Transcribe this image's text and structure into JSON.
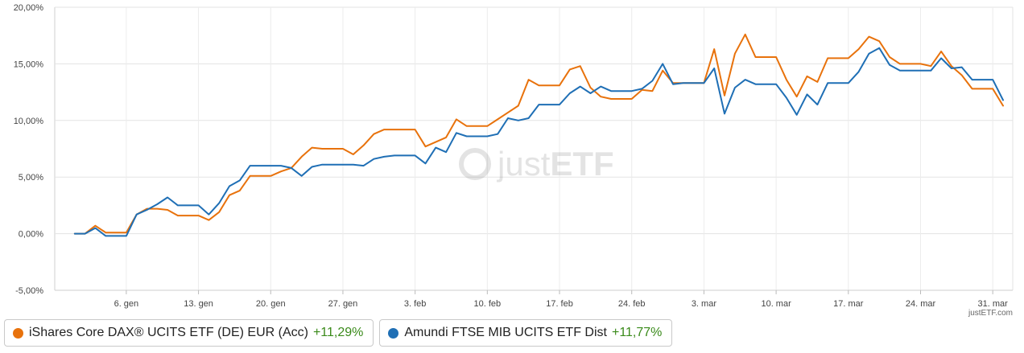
{
  "chart_data": {
    "type": "line",
    "y_tick_labels": [
      "20,00%",
      "15,00%",
      "10,00%",
      "5,00%",
      "0,00%",
      "-5,00%"
    ],
    "y_ticks": [
      20,
      15,
      10,
      5,
      0,
      -5
    ],
    "ylim": [
      -5,
      20
    ],
    "x_tick_labels": [
      "6. gen",
      "13. gen",
      "20. gen",
      "27. gen",
      "3. feb",
      "10. feb",
      "17. feb",
      "24. feb",
      "3. mar",
      "10. mar",
      "17. mar",
      "24. mar",
      "31. mar"
    ],
    "x_tick_index": [
      6,
      13,
      20,
      27,
      34,
      41,
      48,
      55,
      62,
      69,
      76,
      83,
      90
    ],
    "x_range": [
      0,
      91
    ],
    "grid": true,
    "series": [
      {
        "name": "iShares Core DAX® UCITS ETF (DE) EUR (Acc)",
        "color": "#e8720c",
        "performance": "+11,29%",
        "values": [
          [
            1,
            0
          ],
          [
            2,
            0
          ],
          [
            3,
            0.7
          ],
          [
            4,
            0.1
          ],
          [
            5,
            0.1
          ],
          [
            6,
            0.1
          ],
          [
            7,
            1.7
          ],
          [
            8,
            2.2
          ],
          [
            9,
            2.2
          ],
          [
            10,
            2.1
          ],
          [
            11,
            1.6
          ],
          [
            12,
            1.6
          ],
          [
            13,
            1.6
          ],
          [
            14,
            1.2
          ],
          [
            15,
            1.9
          ],
          [
            16,
            3.4
          ],
          [
            17,
            3.8
          ],
          [
            18,
            5.1
          ],
          [
            19,
            5.1
          ],
          [
            20,
            5.1
          ],
          [
            21,
            5.5
          ],
          [
            22,
            5.8
          ],
          [
            23,
            6.8
          ],
          [
            24,
            7.6
          ],
          [
            25,
            7.5
          ],
          [
            26,
            7.5
          ],
          [
            27,
            7.5
          ],
          [
            28,
            7.0
          ],
          [
            29,
            7.8
          ],
          [
            30,
            8.8
          ],
          [
            31,
            9.2
          ],
          [
            32,
            9.2
          ],
          [
            33,
            9.2
          ],
          [
            34,
            9.2
          ],
          [
            35,
            7.7
          ],
          [
            36,
            8.1
          ],
          [
            37,
            8.5
          ],
          [
            38,
            10.1
          ],
          [
            39,
            9.5
          ],
          [
            40,
            9.5
          ],
          [
            41,
            9.5
          ],
          [
            42,
            10.1
          ],
          [
            43,
            10.7
          ],
          [
            44,
            11.3
          ],
          [
            45,
            13.6
          ],
          [
            46,
            13.1
          ],
          [
            47,
            13.1
          ],
          [
            48,
            13.1
          ],
          [
            49,
            14.5
          ],
          [
            50,
            14.8
          ],
          [
            51,
            12.9
          ],
          [
            52,
            12.1
          ],
          [
            53,
            11.9
          ],
          [
            54,
            11.9
          ],
          [
            55,
            11.9
          ],
          [
            56,
            12.7
          ],
          [
            57,
            12.6
          ],
          [
            58,
            14.4
          ],
          [
            59,
            13.3
          ],
          [
            60,
            13.3
          ],
          [
            61,
            13.3
          ],
          [
            62,
            13.3
          ],
          [
            63,
            16.3
          ],
          [
            64,
            12.2
          ],
          [
            65,
            15.9
          ],
          [
            66,
            17.6
          ],
          [
            67,
            15.6
          ],
          [
            68,
            15.6
          ],
          [
            69,
            15.6
          ],
          [
            70,
            13.6
          ],
          [
            71,
            12.1
          ],
          [
            72,
            13.9
          ],
          [
            73,
            13.4
          ],
          [
            74,
            15.5
          ],
          [
            75,
            15.5
          ],
          [
            76,
            15.5
          ],
          [
            77,
            16.3
          ],
          [
            78,
            17.4
          ],
          [
            79,
            17.0
          ],
          [
            80,
            15.6
          ],
          [
            81,
            15.0
          ],
          [
            82,
            15.0
          ],
          [
            83,
            15.0
          ],
          [
            84,
            14.8
          ],
          [
            85,
            16.1
          ],
          [
            86,
            14.8
          ],
          [
            87,
            14.0
          ],
          [
            88,
            12.8
          ],
          [
            89,
            12.8
          ],
          [
            90,
            12.8
          ],
          [
            91,
            11.3
          ]
        ]
      },
      {
        "name": "Amundi FTSE MIB UCITS ETF Dist",
        "color": "#1f6fb5",
        "performance": "+11,77%",
        "values": [
          [
            1,
            0
          ],
          [
            2,
            0
          ],
          [
            3,
            0.5
          ],
          [
            4,
            -0.2
          ],
          [
            5,
            -0.2
          ],
          [
            6,
            -0.2
          ],
          [
            7,
            1.7
          ],
          [
            8,
            2.1
          ],
          [
            9,
            2.6
          ],
          [
            10,
            3.2
          ],
          [
            11,
            2.5
          ],
          [
            12,
            2.5
          ],
          [
            13,
            2.5
          ],
          [
            14,
            1.7
          ],
          [
            15,
            2.7
          ],
          [
            16,
            4.2
          ],
          [
            17,
            4.7
          ],
          [
            18,
            6.0
          ],
          [
            19,
            6.0
          ],
          [
            20,
            6.0
          ],
          [
            21,
            6.0
          ],
          [
            22,
            5.8
          ],
          [
            23,
            5.1
          ],
          [
            24,
            5.9
          ],
          [
            25,
            6.1
          ],
          [
            26,
            6.1
          ],
          [
            27,
            6.1
          ],
          [
            28,
            6.1
          ],
          [
            29,
            6.0
          ],
          [
            30,
            6.6
          ],
          [
            31,
            6.8
          ],
          [
            32,
            6.9
          ],
          [
            33,
            6.9
          ],
          [
            34,
            6.9
          ],
          [
            35,
            6.2
          ],
          [
            36,
            7.6
          ],
          [
            37,
            7.2
          ],
          [
            38,
            8.9
          ],
          [
            39,
            8.6
          ],
          [
            40,
            8.6
          ],
          [
            41,
            8.6
          ],
          [
            42,
            8.8
          ],
          [
            43,
            10.2
          ],
          [
            44,
            10.0
          ],
          [
            45,
            10.2
          ],
          [
            46,
            11.4
          ],
          [
            47,
            11.4
          ],
          [
            48,
            11.4
          ],
          [
            49,
            12.4
          ],
          [
            50,
            13.0
          ],
          [
            51,
            12.4
          ],
          [
            52,
            13.0
          ],
          [
            53,
            12.6
          ],
          [
            54,
            12.6
          ],
          [
            55,
            12.6
          ],
          [
            56,
            12.8
          ],
          [
            57,
            13.5
          ],
          [
            58,
            15.0
          ],
          [
            59,
            13.2
          ],
          [
            60,
            13.3
          ],
          [
            61,
            13.3
          ],
          [
            62,
            13.3
          ],
          [
            63,
            14.6
          ],
          [
            64,
            10.6
          ],
          [
            65,
            12.9
          ],
          [
            66,
            13.6
          ],
          [
            67,
            13.2
          ],
          [
            68,
            13.2
          ],
          [
            69,
            13.2
          ],
          [
            70,
            12.0
          ],
          [
            71,
            10.5
          ],
          [
            72,
            12.3
          ],
          [
            73,
            11.4
          ],
          [
            74,
            13.3
          ],
          [
            75,
            13.3
          ],
          [
            76,
            13.3
          ],
          [
            77,
            14.3
          ],
          [
            78,
            15.9
          ],
          [
            79,
            16.4
          ],
          [
            80,
            14.9
          ],
          [
            81,
            14.4
          ],
          [
            82,
            14.4
          ],
          [
            83,
            14.4
          ],
          [
            84,
            14.4
          ],
          [
            85,
            15.5
          ],
          [
            86,
            14.6
          ],
          [
            87,
            14.7
          ],
          [
            88,
            13.6
          ],
          [
            89,
            13.6
          ],
          [
            90,
            13.6
          ],
          [
            91,
            11.8
          ]
        ]
      }
    ]
  },
  "watermark": {
    "part1": "just",
    "part2": "ETF"
  },
  "credit": "justETF.com",
  "legend": [
    {
      "label": "iShares Core DAX® UCITS ETF (DE) EUR (Acc)",
      "performance": "+11,29%",
      "color": "#e8720c"
    },
    {
      "label": "Amundi FTSE MIB UCITS ETF Dist",
      "performance": "+11,77%",
      "color": "#1f6fb5"
    }
  ]
}
